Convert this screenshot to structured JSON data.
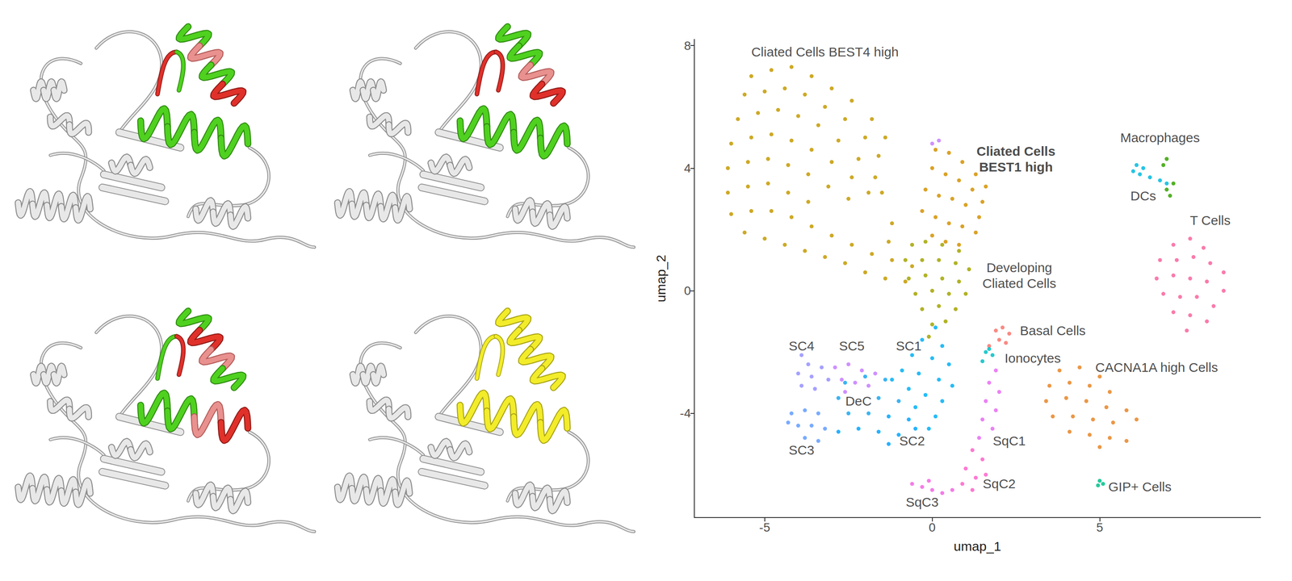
{
  "chart_data": {
    "type": "scatter",
    "x_label": "umap_1",
    "y_label": "umap_2",
    "xlim": [
      -7.1,
      9.8
    ],
    "ylim": [
      -7.4,
      8.2
    ],
    "xticks": [
      -5,
      0,
      5
    ],
    "yticks": [
      -4,
      0,
      4,
      8
    ],
    "grid": false,
    "series": [
      {
        "name": "Cliated Cells BEST4 high",
        "color": "#C49A00",
        "label_at": [
          -3.2,
          7.8
        ],
        "values": [
          [
            -5.4,
            7.0
          ],
          [
            -4.8,
            7.2
          ],
          [
            -4.2,
            7.3
          ],
          [
            -3.6,
            7.0
          ],
          [
            -3.0,
            6.6
          ],
          [
            -2.4,
            6.2
          ],
          [
            -1.8,
            5.6
          ],
          [
            -1.4,
            5.0
          ],
          [
            -5.6,
            6.4
          ],
          [
            -5.0,
            6.5
          ],
          [
            -4.4,
            6.6
          ],
          [
            -3.8,
            6.4
          ],
          [
            -3.2,
            6.0
          ],
          [
            -2.6,
            5.6
          ],
          [
            -2.0,
            5.0
          ],
          [
            -1.6,
            4.4
          ],
          [
            -5.8,
            5.6
          ],
          [
            -5.2,
            5.8
          ],
          [
            -4.6,
            5.9
          ],
          [
            -4.0,
            5.7
          ],
          [
            -3.4,
            5.4
          ],
          [
            -2.8,
            4.9
          ],
          [
            -2.2,
            4.3
          ],
          [
            -1.7,
            3.7
          ],
          [
            -6.0,
            4.8
          ],
          [
            -5.4,
            5.0
          ],
          [
            -4.8,
            5.1
          ],
          [
            -4.2,
            4.9
          ],
          [
            -3.6,
            4.6
          ],
          [
            -3.0,
            4.2
          ],
          [
            -2.4,
            3.7
          ],
          [
            -1.9,
            3.2
          ],
          [
            -6.1,
            4.0
          ],
          [
            -5.5,
            4.2
          ],
          [
            -4.9,
            4.3
          ],
          [
            -4.3,
            4.1
          ],
          [
            -3.7,
            3.8
          ],
          [
            -3.1,
            3.4
          ],
          [
            -2.5,
            3.0
          ],
          [
            -6.1,
            3.2
          ],
          [
            -5.5,
            3.4
          ],
          [
            -4.9,
            3.5
          ],
          [
            -4.3,
            3.2
          ],
          [
            -3.7,
            2.9
          ],
          [
            -6.0,
            2.5
          ],
          [
            -5.4,
            2.6
          ],
          [
            -4.8,
            2.6
          ],
          [
            -4.2,
            2.4
          ],
          [
            -3.6,
            2.1
          ],
          [
            -3.0,
            1.8
          ],
          [
            -2.4,
            1.5
          ],
          [
            -1.8,
            1.2
          ],
          [
            -1.2,
            1.0
          ],
          [
            -0.6,
            0.8
          ],
          [
            -5.6,
            1.9
          ],
          [
            -5.0,
            1.7
          ],
          [
            -4.4,
            1.5
          ],
          [
            -3.8,
            1.3
          ],
          [
            -3.2,
            1.1
          ],
          [
            -2.6,
            0.9
          ],
          [
            -2.0,
            0.6
          ],
          [
            -1.4,
            0.4
          ],
          [
            -0.8,
            0.3
          ],
          [
            -1.2,
            2.2
          ],
          [
            -1.5,
            3.2
          ],
          [
            -1.3,
            1.6
          ]
        ]
      },
      {
        "name": "Cliated Cells\nBEST1 high",
        "color": "#D39200",
        "label_at": [
          2.5,
          4.3
        ],
        "values": [
          [
            0.1,
            4.6
          ],
          [
            0.5,
            4.5
          ],
          [
            0.9,
            4.2
          ],
          [
            1.3,
            3.8
          ],
          [
            0.0,
            4.0
          ],
          [
            0.4,
            3.8
          ],
          [
            0.8,
            3.6
          ],
          [
            1.2,
            3.3
          ],
          [
            1.5,
            2.9
          ],
          [
            -0.2,
            3.3
          ],
          [
            0.2,
            3.1
          ],
          [
            0.6,
            3.0
          ],
          [
            1.0,
            2.8
          ],
          [
            1.4,
            2.4
          ],
          [
            -0.3,
            2.6
          ],
          [
            0.1,
            2.4
          ],
          [
            0.5,
            2.2
          ],
          [
            0.9,
            2.1
          ],
          [
            1.3,
            1.9
          ],
          [
            0.0,
            1.8
          ],
          [
            0.4,
            1.6
          ],
          [
            0.8,
            1.5
          ],
          [
            1.6,
            3.4
          ]
        ]
      },
      {
        "name": "Developing\nCliated Cells",
        "color": "#A3A500",
        "label_at": [
          2.6,
          0.5
        ],
        "values": [
          [
            -0.6,
            1.5
          ],
          [
            -0.2,
            1.6
          ],
          [
            0.3,
            1.5
          ],
          [
            0.8,
            1.3
          ],
          [
            -0.8,
            1.0
          ],
          [
            -0.3,
            1.0
          ],
          [
            0.2,
            1.0
          ],
          [
            0.7,
            0.9
          ],
          [
            1.1,
            0.7
          ],
          [
            -0.7,
            0.4
          ],
          [
            -0.2,
            0.5
          ],
          [
            0.3,
            0.4
          ],
          [
            0.8,
            0.3
          ],
          [
            -0.5,
            -0.1
          ],
          [
            0.0,
            0.0
          ],
          [
            0.5,
            -0.1
          ],
          [
            1.0,
            -0.1
          ],
          [
            -0.3,
            -0.6
          ],
          [
            0.2,
            -0.5
          ],
          [
            0.7,
            -0.6
          ],
          [
            0.0,
            -1.1
          ],
          [
            0.4,
            -1.0
          ],
          [
            -0.1,
            -1.5
          ]
        ]
      },
      {
        "name": "SC1",
        "color": "#00B0F6",
        "label_at": [
          -0.7,
          -1.8
        ],
        "values": [
          [
            0.1,
            -1.2
          ],
          [
            -0.3,
            -1.6
          ],
          [
            0.3,
            -1.8
          ],
          [
            -0.6,
            -2.1
          ],
          [
            0.0,
            -2.2
          ],
          [
            0.5,
            -2.4
          ],
          [
            -0.9,
            -2.6
          ],
          [
            -0.4,
            -2.7
          ],
          [
            0.2,
            -2.9
          ],
          [
            0.6,
            -3.1
          ],
          [
            -0.7,
            -3.2
          ],
          [
            -0.2,
            -3.4
          ],
          [
            0.3,
            -3.6
          ],
          [
            -0.5,
            -3.8
          ],
          [
            0.1,
            -4.1
          ],
          [
            -1.2,
            -2.9
          ],
          [
            -0.1,
            -4.5
          ]
        ]
      },
      {
        "name": "DeC",
        "color": "#1AA7EE",
        "label_at": [
          -2.2,
          -3.6
        ],
        "values": [
          [
            -2.6,
            -3.0
          ],
          [
            -2.0,
            -2.8
          ],
          [
            -1.4,
            -2.9
          ],
          [
            -2.8,
            -3.5
          ],
          [
            -1.6,
            -3.5
          ],
          [
            -1.0,
            -3.6
          ],
          [
            -2.5,
            -4.0
          ],
          [
            -1.9,
            -4.0
          ]
        ]
      },
      {
        "name": "SC2",
        "color": "#00A5FF",
        "label_at": [
          -0.6,
          -4.9
        ],
        "values": [
          [
            -1.3,
            -4.1
          ],
          [
            -0.7,
            -4.2
          ],
          [
            -2.2,
            -4.5
          ],
          [
            -1.6,
            -4.6
          ],
          [
            -1.0,
            -4.7
          ],
          [
            -0.5,
            -4.5
          ],
          [
            -1.3,
            -5.0
          ],
          [
            -2.8,
            -4.6
          ]
        ]
      },
      {
        "name": "SC3",
        "color": "#619CFF",
        "label_at": [
          -3.9,
          -5.2
        ],
        "values": [
          [
            -4.2,
            -4.0
          ],
          [
            -3.8,
            -3.9
          ],
          [
            -3.4,
            -4.0
          ],
          [
            -4.0,
            -4.4
          ],
          [
            -3.6,
            -4.4
          ],
          [
            -3.2,
            -4.5
          ],
          [
            -3.8,
            -4.8
          ],
          [
            -3.4,
            -4.9
          ],
          [
            -4.3,
            -4.3
          ]
        ]
      },
      {
        "name": "SC4",
        "color": "#9590FF",
        "label_at": [
          -3.9,
          -1.8
        ],
        "values": [
          [
            -3.9,
            -2.1
          ],
          [
            -3.7,
            -2.4
          ],
          [
            -4.0,
            -2.7
          ],
          [
            -3.6,
            -2.8
          ],
          [
            -3.3,
            -2.5
          ],
          [
            -3.9,
            -3.1
          ],
          [
            -3.5,
            -3.2
          ],
          [
            -3.1,
            -2.9
          ]
        ]
      },
      {
        "name": "SC5",
        "color": "#C77CFF",
        "label_at": [
          -2.4,
          -1.8
        ],
        "values": [
          [
            -2.9,
            -2.5
          ],
          [
            -2.5,
            -2.4
          ],
          [
            -2.1,
            -2.6
          ],
          [
            -2.7,
            -2.9
          ],
          [
            -2.3,
            -3.0
          ],
          [
            -1.9,
            -3.1
          ],
          [
            -2.6,
            -3.3
          ],
          [
            -1.7,
            -2.7
          ],
          [
            0.0,
            4.8
          ],
          [
            0.2,
            4.9
          ]
        ]
      },
      {
        "name": "SqC1",
        "color": "#E76BF3",
        "label_at": [
          2.3,
          -4.9
        ],
        "values": [
          [
            1.9,
            -2.6
          ],
          [
            1.7,
            -3.0
          ],
          [
            2.0,
            -3.3
          ],
          [
            1.6,
            -3.6
          ],
          [
            1.9,
            -3.9
          ],
          [
            1.5,
            -4.2
          ],
          [
            1.8,
            -4.5
          ],
          [
            1.4,
            -4.8
          ]
        ]
      },
      {
        "name": "SqC2",
        "color": "#FF61C9",
        "label_at": [
          2.0,
          -6.3
        ],
        "values": [
          [
            1.2,
            -5.2
          ],
          [
            1.5,
            -5.5
          ],
          [
            1.0,
            -5.8
          ],
          [
            1.3,
            -6.1
          ],
          [
            0.9,
            -6.3
          ],
          [
            1.2,
            -6.5
          ],
          [
            1.6,
            -6.0
          ]
        ]
      },
      {
        "name": "SqC3",
        "color": "#F564E3",
        "label_at": [
          -0.3,
          -6.9
        ],
        "values": [
          [
            -0.6,
            -6.3
          ],
          [
            -0.3,
            -6.4
          ],
          [
            0.0,
            -6.5
          ],
          [
            0.3,
            -6.6
          ],
          [
            0.6,
            -6.5
          ],
          [
            -0.1,
            -6.2
          ]
        ]
      },
      {
        "name": "Basal Cells",
        "color": "#F8766D",
        "label_at": [
          3.6,
          -1.3
        ],
        "values": [
          [
            1.9,
            -1.3
          ],
          [
            2.1,
            -1.2
          ],
          [
            2.3,
            -1.4
          ],
          [
            2.0,
            -1.6
          ],
          [
            2.2,
            -1.7
          ],
          [
            1.7,
            -1.8
          ]
        ]
      },
      {
        "name": "Ionocytes",
        "color": "#00BFC4",
        "label_at": [
          3.0,
          -2.2
        ],
        "values": [
          [
            1.6,
            -2.0
          ],
          [
            1.8,
            -2.1
          ],
          [
            1.5,
            -2.3
          ],
          [
            1.7,
            -1.9
          ]
        ]
      },
      {
        "name": "CACNA1A high Cells",
        "color": "#E88526",
        "label_at": [
          6.7,
          -2.5
        ],
        "values": [
          [
            3.8,
            -2.6
          ],
          [
            4.4,
            -2.5
          ],
          [
            5.0,
            -2.8
          ],
          [
            3.5,
            -3.1
          ],
          [
            4.1,
            -3.0
          ],
          [
            4.7,
            -3.1
          ],
          [
            5.3,
            -3.3
          ],
          [
            3.4,
            -3.6
          ],
          [
            4.0,
            -3.5
          ],
          [
            4.6,
            -3.6
          ],
          [
            5.2,
            -3.8
          ],
          [
            5.8,
            -3.9
          ],
          [
            3.6,
            -4.1
          ],
          [
            4.2,
            -4.1
          ],
          [
            4.8,
            -4.2
          ],
          [
            5.4,
            -4.3
          ],
          [
            6.1,
            -4.2
          ],
          [
            4.1,
            -4.6
          ],
          [
            4.7,
            -4.7
          ],
          [
            5.3,
            -4.8
          ],
          [
            5.8,
            -4.9
          ],
          [
            5.0,
            -5.1
          ]
        ]
      },
      {
        "name": "GIP+ Cells",
        "color": "#00C08B",
        "label_at": [
          6.2,
          -6.4
        ],
        "values": [
          [
            5.0,
            -6.2
          ],
          [
            5.1,
            -6.3
          ],
          [
            4.95,
            -6.35
          ]
        ]
      },
      {
        "name": "Macrophages",
        "color": "#00BADE",
        "label_at": [
          6.8,
          5.0
        ],
        "values": [
          [
            6.0,
            3.9
          ],
          [
            6.2,
            3.8
          ],
          [
            6.5,
            3.7
          ],
          [
            6.8,
            3.6
          ],
          [
            7.0,
            3.5
          ],
          [
            6.3,
            4.0
          ],
          [
            6.1,
            4.1
          ]
        ]
      },
      {
        "name": "DCs",
        "color": "#35A200",
        "label_at": [
          6.3,
          3.1
        ],
        "values": [
          [
            7.0,
            3.3
          ],
          [
            7.1,
            3.1
          ],
          [
            7.2,
            3.5
          ],
          [
            6.9,
            4.1
          ],
          [
            7.0,
            4.3
          ]
        ]
      },
      {
        "name": "T Cells",
        "color": "#F8649D",
        "label_at": [
          8.3,
          2.3
        ],
        "values": [
          [
            7.2,
            1.5
          ],
          [
            7.7,
            1.7
          ],
          [
            8.1,
            1.4
          ],
          [
            6.8,
            1.0
          ],
          [
            7.3,
            1.0
          ],
          [
            7.8,
            1.1
          ],
          [
            8.3,
            0.9
          ],
          [
            8.7,
            0.6
          ],
          [
            6.7,
            0.4
          ],
          [
            7.2,
            0.5
          ],
          [
            7.7,
            0.4
          ],
          [
            8.2,
            0.3
          ],
          [
            8.7,
            0.0
          ],
          [
            6.9,
            -0.1
          ],
          [
            7.4,
            -0.2
          ],
          [
            7.9,
            -0.2
          ],
          [
            8.4,
            -0.5
          ],
          [
            7.2,
            -0.7
          ],
          [
            7.7,
            -0.8
          ],
          [
            8.2,
            -1.0
          ],
          [
            7.6,
            -1.3
          ]
        ]
      }
    ]
  }
}
